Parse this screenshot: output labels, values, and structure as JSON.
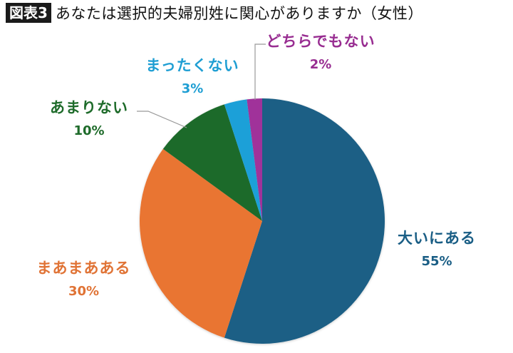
{
  "header": {
    "badge": "図表3",
    "title": "あなたは選択的夫婦別姓に関心がありますか（女性）"
  },
  "chart_data": {
    "type": "pie",
    "title": "あなたは選択的夫婦別姓に関心がありますか（女性）",
    "categories": [
      "大いにある",
      "まあまあある",
      "あまりない",
      "まったくない",
      "どちらでもない"
    ],
    "values": [
      55,
      30,
      10,
      3,
      2
    ],
    "unit": "%",
    "colors": [
      "#1a5e85",
      "#e97432",
      "#1e6b2a",
      "#1ea0d8",
      "#a0309a"
    ],
    "start_angle": "12 o'clock, clockwise",
    "legend": "none (data labels with category and percent)"
  },
  "labels": [
    {
      "name": "大いにある",
      "pct": "55%",
      "color": "#1a5e85"
    },
    {
      "name": "まあまあある",
      "pct": "30%",
      "color": "#e97432"
    },
    {
      "name": "あまりない",
      "pct": "10%",
      "color": "#1e6b2a"
    },
    {
      "name": "まったくない",
      "pct": "3%",
      "color": "#1ea0d8"
    },
    {
      "name": "どちらでもない",
      "pct": "2%",
      "color": "#a0309a"
    }
  ]
}
